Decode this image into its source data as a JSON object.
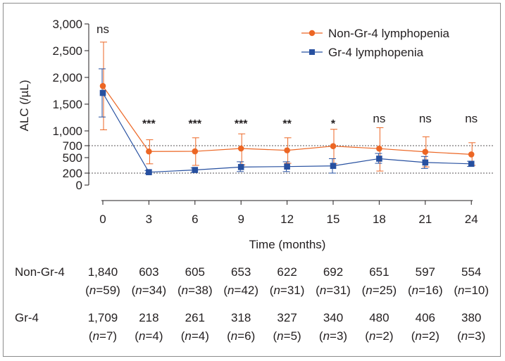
{
  "chart_data": {
    "type": "line",
    "title": "",
    "xlabel": "Time (months)",
    "ylabel": "ALC (/µL)",
    "x": [
      0,
      3,
      6,
      9,
      12,
      15,
      18,
      21,
      24
    ],
    "x_tick_labels": [
      "0",
      "3",
      "6",
      "9",
      "12",
      "15",
      "18",
      "21",
      "24"
    ],
    "y_tick_values": [
      0,
      200,
      500,
      700,
      1000,
      1500,
      2000,
      2500,
      3000
    ],
    "y_tick_labels": [
      "0",
      "200",
      "500",
      "700",
      "1,000",
      "1,500",
      "2,000",
      "2,500",
      "3,000"
    ],
    "reference_lines": [
      200,
      700
    ],
    "series": [
      {
        "name": "Non-Gr-4 lymphopenia",
        "color": "#ec6624",
        "marker": "circle",
        "values": [
          1840,
          603,
          605,
          653,
          622,
          692,
          651,
          597,
          554
        ],
        "error_low": [
          1020,
          380,
          350,
          360,
          390,
          380,
          240,
          320,
          350
        ],
        "error_high": [
          2660,
          820,
          860,
          940,
          860,
          1030,
          1060,
          880,
          760
        ]
      },
      {
        "name": "Gr-4 lymphopenia",
        "color": "#2750a0",
        "marker": "square",
        "values": [
          1709,
          218,
          261,
          318,
          327,
          340,
          480,
          406,
          380
        ],
        "error_low": [
          1260,
          190,
          215,
          230,
          230,
          200,
          390,
          290,
          330
        ],
        "error_high": [
          2160,
          250,
          300,
          420,
          420,
          480,
          570,
          520,
          430
        ]
      }
    ],
    "significance": [
      "ns",
      "***",
      "***",
      "***",
      "**",
      "*",
      "ns",
      "ns",
      "ns"
    ],
    "legend_position": "top-right",
    "table": {
      "rows": [
        {
          "label": "Non-Gr-4",
          "values": [
            "1,840",
            "603",
            "605",
            "653",
            "622",
            "692",
            "651",
            "597",
            "554"
          ],
          "counts": [
            "59",
            "34",
            "38",
            "42",
            "31",
            "31",
            "25",
            "16",
            "10"
          ]
        },
        {
          "label": "Gr-4",
          "values": [
            "1,709",
            "218",
            "261",
            "318",
            "327",
            "340",
            "480",
            "406",
            "380"
          ],
          "counts": [
            "7",
            "4",
            "4",
            "6",
            "5",
            "3",
            "2",
            "2",
            "3"
          ]
        }
      ],
      "n_prefix": "n"
    }
  }
}
